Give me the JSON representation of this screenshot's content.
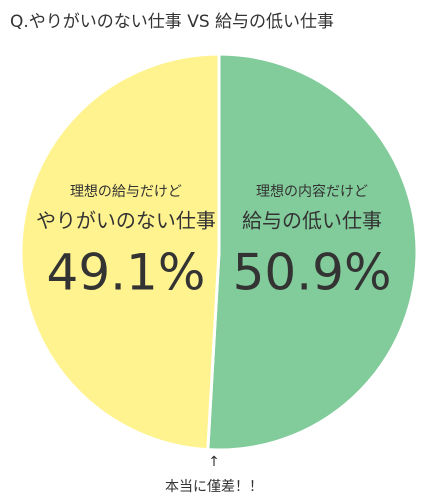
{
  "chart_data": {
    "type": "pie",
    "title": "Q.やりがいのない仕事 VS 給与の低い仕事",
    "categories": [
      "給与の低い仕事",
      "やりがいのない仕事"
    ],
    "category_notes": [
      "理想の内容だけど",
      "理想の給与だけど"
    ],
    "values": [
      50.9,
      49.1
    ],
    "value_labels": [
      "50.9%",
      "49.1%"
    ],
    "colors": [
      "#82cc9b",
      "#fff38f"
    ],
    "arrow": "↑",
    "annotation": "本当に僅差！！"
  }
}
